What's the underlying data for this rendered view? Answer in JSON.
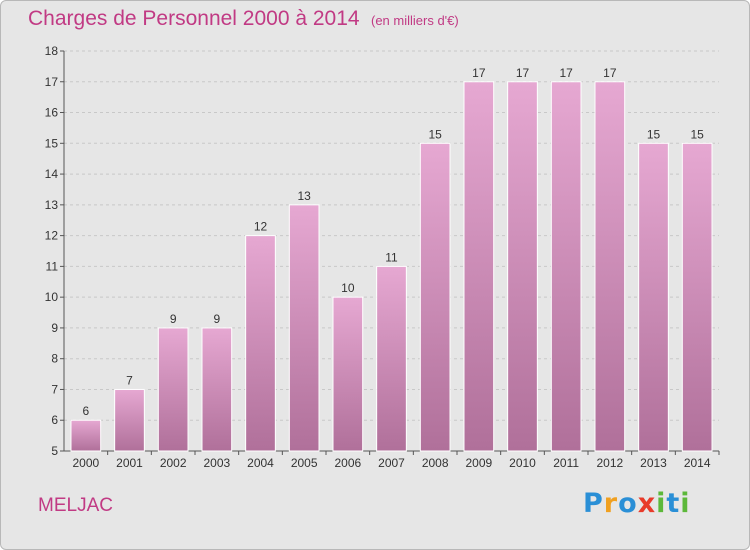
{
  "header": {
    "title": "Charges de Personnel 2000 à 2014",
    "subtitle": "(en milliers d'€)"
  },
  "footer": {
    "commune": "MELJAC",
    "logo_text": "Proxiti",
    "logo_letters": [
      "P",
      "r",
      "o",
      "x",
      "i",
      "t",
      "i"
    ],
    "logo_colors": [
      "#2a8fd6",
      "#f0a020",
      "#2a8fd6",
      "#e83b2a",
      "#5cb83a",
      "#2a8fd6",
      "#5cb83a"
    ]
  },
  "colors": {
    "bar_top": "#e6a8d2",
    "bar_bottom": "#b0709a",
    "bar_edge": "#ffffff",
    "grid": "#c8c8c8",
    "text_accent": "#c13a84"
  },
  "chart_data": {
    "type": "bar",
    "categories": [
      "2000",
      "2001",
      "2002",
      "2003",
      "2004",
      "2005",
      "2006",
      "2007",
      "2008",
      "2009",
      "2010",
      "2011",
      "2012",
      "2013",
      "2014"
    ],
    "values": [
      6,
      7,
      9,
      9,
      12,
      13,
      10,
      11,
      15,
      17,
      17,
      17,
      17,
      15,
      15
    ],
    "data_labels": [
      "6",
      "7",
      "9",
      "9",
      "12",
      "13",
      "10",
      "11",
      "15",
      "17",
      "17",
      "17",
      "17",
      "15",
      "15"
    ],
    "title": "Charges de Personnel 2000 à 2014",
    "subtitle": "(en milliers d'€)",
    "xlabel": "",
    "ylabel": "",
    "ylim": [
      5,
      18
    ],
    "yticks": [
      5,
      6,
      7,
      8,
      9,
      10,
      11,
      12,
      13,
      14,
      15,
      16,
      17,
      18
    ],
    "grid": true
  }
}
